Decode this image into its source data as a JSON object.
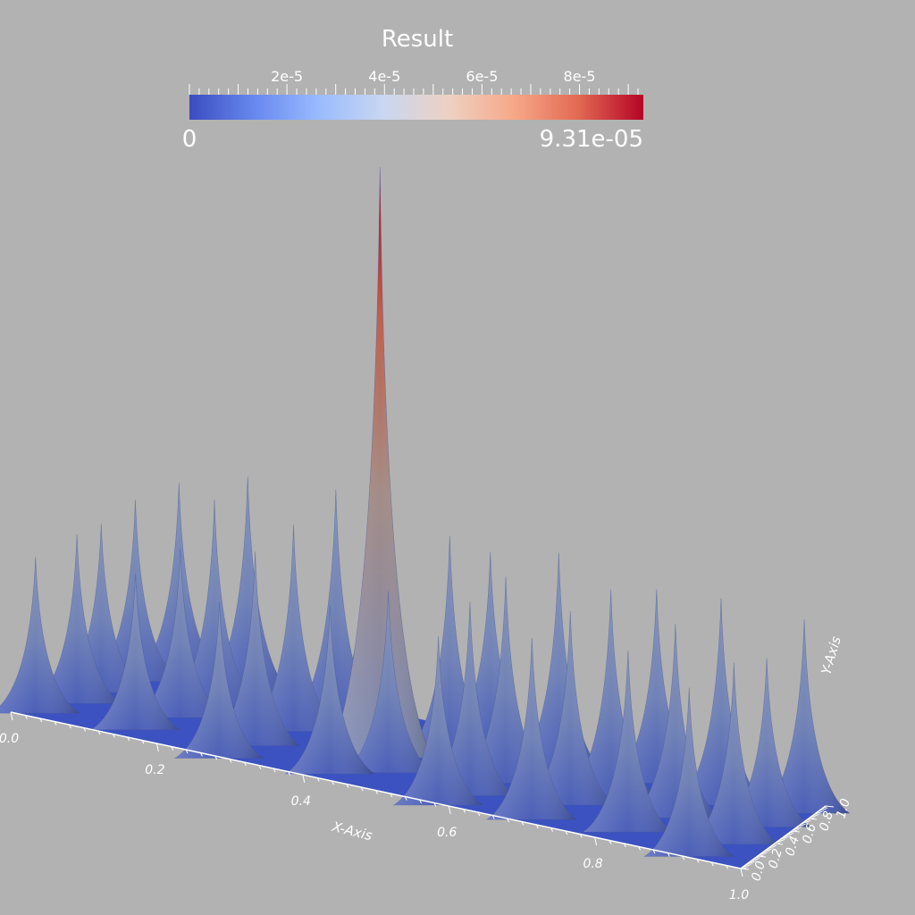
{
  "chart_data": {
    "type": "surface",
    "title": "Result",
    "colorbar": {
      "min_label": "0",
      "max_label": "9.31e-05",
      "min": 0,
      "max": 9.31e-05,
      "ticks": [
        {
          "value": 2e-05,
          "label": "2e-5"
        },
        {
          "value": 4e-05,
          "label": "4e-5"
        },
        {
          "value": 6e-05,
          "label": "6e-5"
        },
        {
          "value": 8e-05,
          "label": "8e-5"
        }
      ],
      "colormap": [
        "#3b4cc0",
        "#6788ee",
        "#9abbff",
        "#c9d7f0",
        "#edd1c2",
        "#f7a889",
        "#e26952",
        "#b40426"
      ]
    },
    "x_axis": {
      "label": "X-Axis",
      "range": [
        0,
        1
      ],
      "ticks": [
        "0.0",
        "0.2",
        "0.4",
        "0.6",
        "0.8",
        "1.0"
      ]
    },
    "y_axis": {
      "label": "Y-Axis",
      "range": [
        0,
        1
      ],
      "ticks": [
        "0.0",
        "0.2",
        "0.4",
        "0.6",
        "0.8",
        "1.0"
      ]
    },
    "peaks": [
      {
        "x": 0.45,
        "y": 0.48,
        "value": 9.31e-05
      },
      {
        "x": 0.02,
        "y": 0.12,
        "value": 2.4e-05
      },
      {
        "x": 0.05,
        "y": 0.35,
        "value": 2.6e-05
      },
      {
        "x": 0.06,
        "y": 0.55,
        "value": 2.6e-05
      },
      {
        "x": 0.08,
        "y": 0.78,
        "value": 2.8e-05
      },
      {
        "x": 0.12,
        "y": 0.95,
        "value": 3e-05
      },
      {
        "x": 0.15,
        "y": 0.18,
        "value": 2.4e-05
      },
      {
        "x": 0.18,
        "y": 0.45,
        "value": 2.6e-05
      },
      {
        "x": 0.2,
        "y": 0.68,
        "value": 3.2e-05
      },
      {
        "x": 0.22,
        "y": 0.9,
        "value": 3.4e-05
      },
      {
        "x": 0.28,
        "y": 0.05,
        "value": 2.4e-05
      },
      {
        "x": 0.3,
        "y": 0.3,
        "value": 3e-05
      },
      {
        "x": 0.32,
        "y": 0.58,
        "value": 3.2e-05
      },
      {
        "x": 0.35,
        "y": 0.82,
        "value": 3.6e-05
      },
      {
        "x": 0.38,
        "y": 0.96,
        "value": 3.4e-05
      },
      {
        "x": 0.42,
        "y": 0.15,
        "value": 2.6e-05
      },
      {
        "x": 0.48,
        "y": 0.32,
        "value": 2.8e-05
      },
      {
        "x": 0.52,
        "y": 0.7,
        "value": 3.4e-05
      },
      {
        "x": 0.55,
        "y": 0.92,
        "value": 3e-05
      },
      {
        "x": 0.58,
        "y": 0.05,
        "value": 2.6e-05
      },
      {
        "x": 0.6,
        "y": 0.25,
        "value": 3e-05
      },
      {
        "x": 0.62,
        "y": 0.5,
        "value": 3.2e-05
      },
      {
        "x": 0.66,
        "y": 0.78,
        "value": 3.4e-05
      },
      {
        "x": 0.7,
        "y": 0.12,
        "value": 2.8e-05
      },
      {
        "x": 0.72,
        "y": 0.4,
        "value": 3e-05
      },
      {
        "x": 0.75,
        "y": 0.62,
        "value": 3.2e-05
      },
      {
        "x": 0.78,
        "y": 0.9,
        "value": 3e-05
      },
      {
        "x": 0.82,
        "y": 0.22,
        "value": 2.8e-05
      },
      {
        "x": 0.85,
        "y": 0.52,
        "value": 3e-05
      },
      {
        "x": 0.88,
        "y": 0.8,
        "value": 3.2e-05
      },
      {
        "x": 0.92,
        "y": 0.08,
        "value": 2.6e-05
      },
      {
        "x": 0.95,
        "y": 0.35,
        "value": 2.8e-05
      },
      {
        "x": 0.96,
        "y": 0.65,
        "value": 2.6e-05
      },
      {
        "x": 0.98,
        "y": 0.92,
        "value": 3e-05
      }
    ]
  }
}
